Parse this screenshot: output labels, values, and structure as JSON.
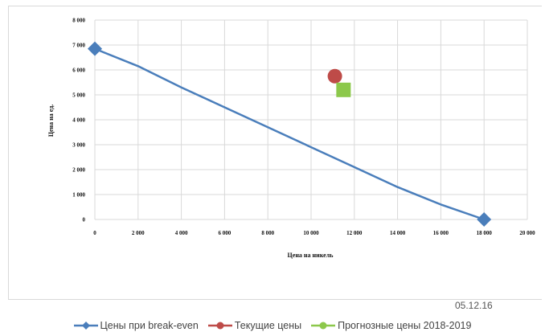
{
  "chart_data": {
    "type": "scatter",
    "title": "",
    "xlabel": "Цена на никель",
    "ylabel": "Цена на ед.",
    "xlim": [
      0,
      20000
    ],
    "ylim": [
      0,
      8000
    ],
    "x_ticks": [
      0,
      2000,
      4000,
      6000,
      8000,
      10000,
      12000,
      14000,
      16000,
      18000,
      20000
    ],
    "x_tick_labels": [
      "0",
      "2 000",
      "4 000",
      "6 000",
      "8 000",
      "10 000",
      "12 000",
      "14 000",
      "16 000",
      "18 000",
      "20 000"
    ],
    "y_ticks": [
      0,
      1000,
      2000,
      3000,
      4000,
      5000,
      6000,
      7000,
      8000
    ],
    "y_tick_labels": [
      "0",
      "1 000",
      "2 000",
      "3 000",
      "4 000",
      "5 000",
      "6 000",
      "7 000",
      "8 000"
    ],
    "grid": true,
    "legend_position": "bottom",
    "series": [
      {
        "name": "Цены при break-even",
        "color": "#4a7ebb",
        "marker": "diamond",
        "line": true,
        "points": [
          [
            0,
            6850
          ],
          [
            18000,
            0
          ]
        ],
        "curve": [
          [
            0,
            6850
          ],
          [
            2000,
            6150
          ],
          [
            4000,
            5300
          ],
          [
            6000,
            4500
          ],
          [
            8000,
            3700
          ],
          [
            10000,
            2900
          ],
          [
            12000,
            2100
          ],
          [
            14000,
            1300
          ],
          [
            16000,
            600
          ],
          [
            18000,
            0
          ]
        ]
      },
      {
        "name": "Текущие цены",
        "color": "#be4b48",
        "marker": "circle",
        "line": false,
        "points": [
          [
            11100,
            5750
          ]
        ]
      },
      {
        "name": "Прогнозные цены 2018-2019",
        "color": "#8cc84b",
        "marker": "square",
        "line": false,
        "points": [
          [
            11500,
            5200
          ]
        ]
      }
    ]
  },
  "date_label": "05.12.16"
}
